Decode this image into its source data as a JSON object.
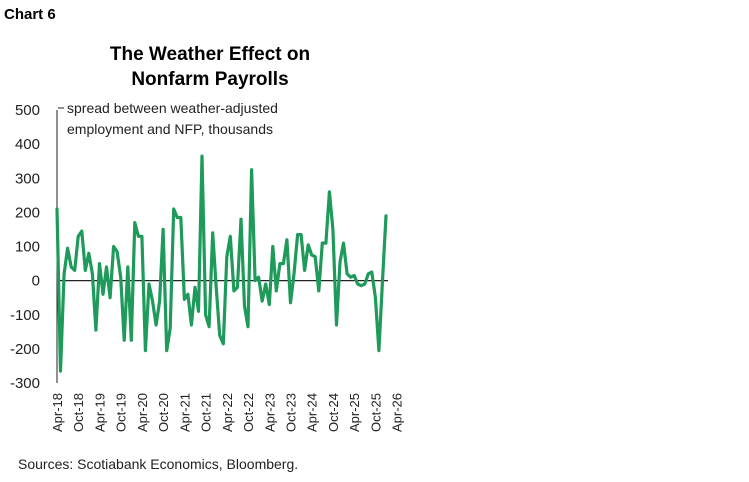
{
  "header": {
    "label": "Chart 6"
  },
  "footer": {
    "source": "Sources: Scotiabank Economics, Bloomberg."
  },
  "chart_data": {
    "type": "line",
    "title_lines": [
      "The Weather Effect on",
      "Nonfarm Payrolls"
    ],
    "annotation_lines": [
      "spread between weather-adjusted",
      "employment and NFP, thousands"
    ],
    "ylim": [
      -300,
      500
    ],
    "yticks": [
      -300,
      -200,
      -100,
      0,
      100,
      200,
      300,
      400,
      500
    ],
    "xtick_labels": [
      "Apr-18",
      "Oct-18",
      "Apr-19",
      "Oct-19",
      "Apr-20",
      "Oct-20",
      "Apr-21",
      "Oct-21",
      "Apr-22",
      "Oct-22",
      "Apr-23",
      "Oct-23",
      "Apr-24",
      "Oct-24",
      "Apr-25",
      "Oct-25",
      "Apr-26"
    ],
    "xtick_index": [
      0,
      6,
      12,
      18,
      24,
      30,
      36,
      42,
      48,
      54,
      60,
      66,
      72,
      78,
      84,
      90,
      96
    ],
    "color": "#1e9a5a",
    "series": [
      {
        "values": [
          210,
          -265,
          20,
          95,
          40,
          30,
          130,
          145,
          30,
          80,
          20,
          -145,
          50,
          -40,
          40,
          -50,
          100,
          85,
          10,
          -175,
          40,
          -175,
          170,
          130,
          130,
          -205,
          -10,
          -60,
          -130,
          -60,
          150,
          -205,
          -140,
          210,
          185,
          185,
          -55,
          -40,
          -130,
          -20,
          -90,
          365,
          -100,
          -135,
          140,
          -20,
          -160,
          -185,
          70,
          130,
          -30,
          -20,
          180,
          -75,
          -135,
          325,
          0,
          10,
          -60,
          -10,
          -70,
          100,
          -30,
          50,
          50,
          120,
          -65,
          20,
          135,
          135,
          30,
          105,
          75,
          70,
          -30,
          110,
          110,
          260,
          150,
          -130,
          55,
          110,
          20,
          10,
          15,
          -10,
          -15,
          -10,
          20,
          25,
          -50,
          -205,
          0,
          190
        ]
      }
    ]
  }
}
